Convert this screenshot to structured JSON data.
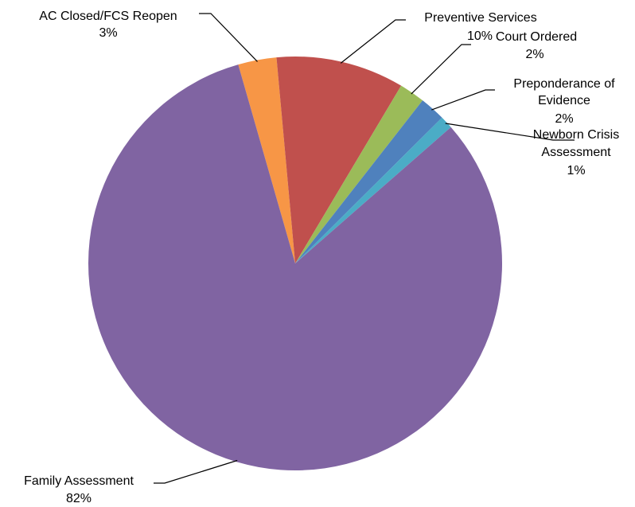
{
  "chart_data": {
    "type": "pie",
    "slices": [
      {
        "label": "AC Closed/FCS Reopen",
        "value": 3,
        "value_label": "3%",
        "color": "#F79646"
      },
      {
        "label": "Preventive Services",
        "value": 10,
        "value_label": "10%",
        "color": "#C0504D"
      },
      {
        "label": "Court Ordered",
        "value": 2,
        "value_label": "2%",
        "color": "#9BBB59"
      },
      {
        "label": "Preponderance of Evidence",
        "value": 2,
        "value_label": "2%",
        "color": "#4F81BD"
      },
      {
        "label": "Newborn Crisis Assessment",
        "value": 1,
        "value_label": "1%",
        "color": "#4BACC6"
      },
      {
        "label": "Family Assessment",
        "value": 82,
        "value_label": "82%",
        "color": "#8064A2"
      }
    ]
  }
}
